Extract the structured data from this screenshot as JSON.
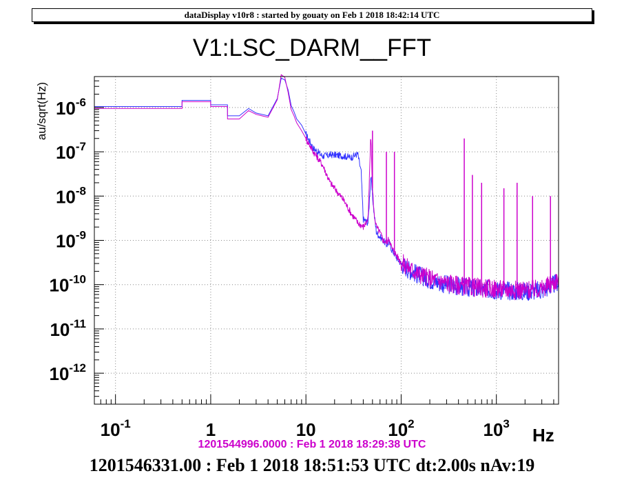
{
  "header": {
    "text": "dataDisplay v10r8 : started by gouaty on Feb  1 2018 18:42:14 UTC"
  },
  "chart_data": {
    "type": "line",
    "title": "V1:LSC_DARM__FFT",
    "ylabel": "au/sqrt(Hz)",
    "xlabel": "Hz",
    "xscale": "log",
    "yscale": "log",
    "xlim": [
      0.06,
      4500
    ],
    "ylim": [
      2e-13,
      5e-06
    ],
    "grid": true,
    "x_ticks": [
      {
        "value": 0.1,
        "base": "10",
        "exp": "-1"
      },
      {
        "value": 1,
        "base": "1",
        "exp": ""
      },
      {
        "value": 10,
        "base": "10",
        "exp": ""
      },
      {
        "value": 100,
        "base": "10",
        "exp": "2"
      },
      {
        "value": 1000,
        "base": "10",
        "exp": "3"
      }
    ],
    "y_ticks": [
      {
        "value": 1e-06,
        "base": "10",
        "exp": "-6"
      },
      {
        "value": 1e-07,
        "base": "10",
        "exp": "-7"
      },
      {
        "value": 1e-08,
        "base": "10",
        "exp": "-8"
      },
      {
        "value": 1e-09,
        "base": "10",
        "exp": "-9"
      },
      {
        "value": 1e-10,
        "base": "10",
        "exp": "-10"
      },
      {
        "value": 1e-11,
        "base": "10",
        "exp": "-11"
      },
      {
        "value": 1e-12,
        "base": "10",
        "exp": "-12"
      }
    ],
    "series": [
      {
        "color": "#3333ff",
        "x": [
          0.06,
          0.5,
          0.5,
          1.0,
          1.0,
          1.5,
          1.5,
          2.0,
          2.5,
          3.0,
          4.0,
          5.0,
          5.5,
          6.0,
          6.5,
          7.0,
          7.5,
          8.0,
          9.0,
          10,
          12,
          15,
          18,
          20,
          25,
          30,
          35,
          38,
          40,
          45,
          48,
          50,
          52,
          55,
          60,
          65,
          70,
          75,
          80,
          85,
          90,
          100,
          120,
          150,
          200,
          300,
          500,
          1000,
          2000,
          3000,
          4000,
          4500
        ],
        "y": [
          1.05e-06,
          1.05e-06,
          1.45e-06,
          1.45e-06,
          1.15e-06,
          1.15e-06,
          6.5e-07,
          6.5e-07,
          9.5e-07,
          7.5e-07,
          6.5e-07,
          1.6e-06,
          4.6e-06,
          4.2e-06,
          2.5e-06,
          1.1e-06,
          8e-07,
          5.5e-07,
          4e-07,
          2.5e-07,
          1.2e-07,
          8e-08,
          8.5e-08,
          8.5e-08,
          8e-08,
          7.5e-08,
          9e-08,
          3.5e-08,
          3e-09,
          2.5e-09,
          3e-08,
          1e-08,
          4e-09,
          1.5e-09,
          1.2e-09,
          1e-09,
          8e-10,
          9e-10,
          6e-10,
          5e-10,
          4e-10,
          3e-10,
          2.2e-10,
          1.7e-10,
          1.3e-10,
          1e-10,
          8.5e-11,
          7.5e-11,
          7e-11,
          7.5e-11,
          1e-10,
          1.2e-10
        ]
      },
      {
        "color": "#cc00cc",
        "x": [
          0.06,
          0.5,
          0.5,
          1.0,
          1.0,
          1.5,
          1.5,
          2.0,
          2.5,
          3.0,
          4.0,
          5.0,
          5.5,
          6.0,
          6.5,
          7.0,
          7.5,
          8.0,
          9.0,
          10,
          12,
          15,
          18,
          20,
          25,
          30,
          35,
          38,
          40,
          45,
          48,
          50,
          52,
          55,
          60,
          65,
          70,
          75,
          80,
          85,
          90,
          100,
          120,
          150,
          200,
          300,
          500,
          1000,
          2000,
          3000,
          4000,
          4500
        ],
        "y": [
          9.5e-07,
          9.5e-07,
          1.35e-06,
          1.35e-06,
          1.05e-06,
          1.05e-06,
          5.5e-07,
          5.5e-07,
          8.5e-07,
          7e-07,
          6e-07,
          1.5e-06,
          5.5e-06,
          4.8e-06,
          2.2e-06,
          9e-07,
          6.5e-07,
          4.5e-07,
          3e-07,
          2e-07,
          1e-07,
          5e-08,
          2e-08,
          1.5e-08,
          8e-09,
          4e-09,
          2.5e-09,
          2.2e-09,
          2e-09,
          3e-09,
          2.5e-07,
          1.5e-08,
          4e-09,
          2e-09,
          1.5e-09,
          1e-09,
          9e-10,
          1.1e-09,
          6.5e-10,
          5.5e-10,
          4.5e-10,
          3.2e-10,
          2.4e-10,
          1.8e-10,
          1.4e-10,
          1.1e-10,
          9e-11,
          8e-11,
          7.5e-11,
          8e-11,
          1.1e-10,
          1.4e-10
        ]
      }
    ],
    "spikes": [
      {
        "x": 50,
        "y": 3e-07
      },
      {
        "x": 70,
        "y": 1e-07
      },
      {
        "x": 85,
        "y": 1e-07
      },
      {
        "x": 460,
        "y": 2e-07
      },
      {
        "x": 560,
        "y": 3e-08
      },
      {
        "x": 700,
        "y": 2e-08
      },
      {
        "x": 1200,
        "y": 1.5e-08
      },
      {
        "x": 1650,
        "y": 2e-08
      },
      {
        "x": 2400,
        "y": 1e-08
      },
      {
        "x": 3700,
        "y": 1e-08
      }
    ]
  },
  "footer": {
    "reference_time": "1201544996.0000 : Feb  1 2018 18:29:38 UTC",
    "current_time": "1201546331.00 : Feb  1 2018 18:51:53 UTC dt:2.00s nAv:19"
  }
}
